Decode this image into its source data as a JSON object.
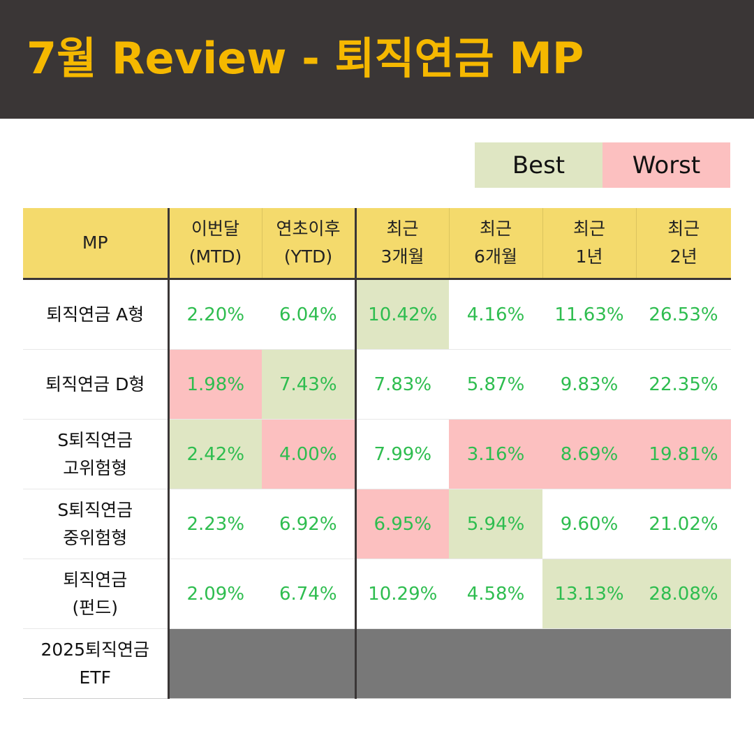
{
  "header": {
    "title": "7월 Review - 퇴직연금 MP"
  },
  "legend": {
    "best": "Best",
    "worst": "Worst"
  },
  "colors": {
    "header_bg": "#3a3636",
    "title": "#f5b800",
    "table_header_bg": "#f4da6c",
    "best": "#dfe6c3",
    "worst": "#fcc0c0",
    "value_text": "#2ebd4f",
    "no_data": "#787878"
  },
  "table": {
    "columns": [
      {
        "line1": "MP",
        "line2": ""
      },
      {
        "line1": "이번달",
        "line2": "(MTD)"
      },
      {
        "line1": "연초이후",
        "line2": "(YTD)"
      },
      {
        "line1": "최근",
        "line2": "3개월"
      },
      {
        "line1": "최근",
        "line2": "6개월"
      },
      {
        "line1": "최근",
        "line2": "1년"
      },
      {
        "line1": "최근",
        "line2": "2년"
      }
    ],
    "rows": [
      {
        "name1": "퇴직연금 A형",
        "name2": "",
        "values": [
          "2.20%",
          "6.04%",
          "10.42%",
          "4.16%",
          "11.63%",
          "26.53%"
        ],
        "status": [
          "",
          "",
          "best",
          "",
          "",
          ""
        ]
      },
      {
        "name1": "퇴직연금 D형",
        "name2": "",
        "values": [
          "1.98%",
          "7.43%",
          "7.83%",
          "5.87%",
          "9.83%",
          "22.35%"
        ],
        "status": [
          "worst",
          "best",
          "",
          "",
          "",
          ""
        ]
      },
      {
        "name1": "S퇴직연금",
        "name2": "고위험형",
        "values": [
          "2.42%",
          "4.00%",
          "7.99%",
          "3.16%",
          "8.69%",
          "19.81%"
        ],
        "status": [
          "best",
          "worst",
          "",
          "worst",
          "worst",
          "worst"
        ]
      },
      {
        "name1": "S퇴직연금",
        "name2": "중위험형",
        "values": [
          "2.23%",
          "6.92%",
          "6.95%",
          "5.94%",
          "9.60%",
          "21.02%"
        ],
        "status": [
          "",
          "",
          "worst",
          "best",
          "",
          ""
        ]
      },
      {
        "name1": "퇴직연금",
        "name2": "(펀드)",
        "values": [
          "2.09%",
          "6.74%",
          "10.29%",
          "4.58%",
          "13.13%",
          "28.08%"
        ],
        "status": [
          "",
          "",
          "",
          "",
          "best",
          "best"
        ]
      },
      {
        "name1": "2025퇴직연금",
        "name2": "ETF",
        "values": [
          "",
          "",
          "",
          "",
          "",
          ""
        ],
        "status": [
          "na",
          "na",
          "na",
          "na",
          "na",
          "na"
        ]
      }
    ]
  }
}
